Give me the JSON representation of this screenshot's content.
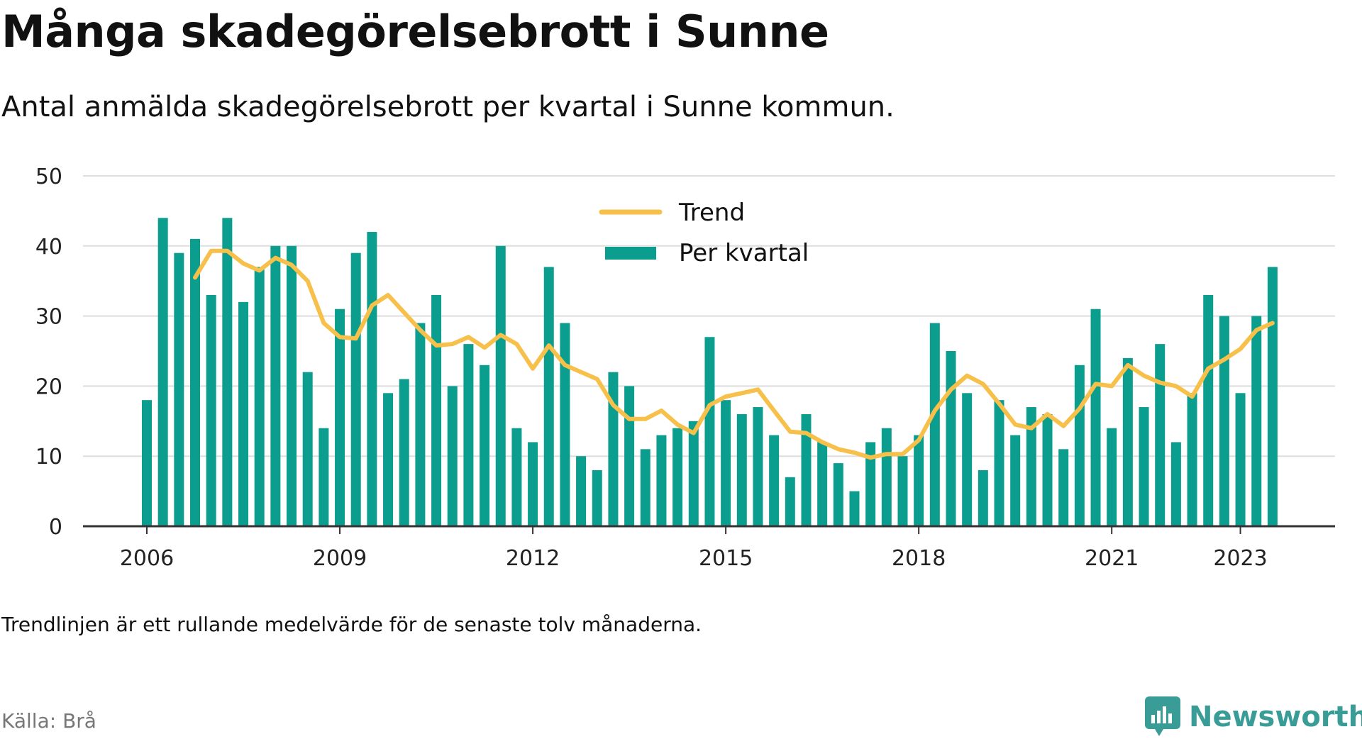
{
  "header": {
    "title": "Många skadegörelsebrott i Sunne",
    "subtitle": "Antal anmälda skadegörelsebrott per kvartal i Sunne kommun."
  },
  "footer": {
    "note": "Trendlinjen är ett rullande medelvärde för de senaste tolv månaderna.",
    "source": "Källa: Brå",
    "brand": "Newsworthy",
    "brand_icon": "newsworthy-logo-icon"
  },
  "colors": {
    "bars": "#0b9e8f",
    "trend": "#f7c04a",
    "grid": "#dddddd",
    "axis": "#333333",
    "brand": "#3a9c96"
  },
  "chart_data": {
    "type": "bar",
    "title": "Många skadegörelsebrott i Sunne",
    "subtitle": "Antal anmälda skadegörelsebrott per kvartal i Sunne kommun.",
    "x_tick_labels": [
      "2006",
      "2009",
      "2012",
      "2015",
      "2018",
      "2021",
      "2023"
    ],
    "y_ticks": [
      0,
      10,
      20,
      30,
      40,
      50
    ],
    "ylim": [
      0,
      50
    ],
    "grid": true,
    "legend_position": "top-center",
    "legend": [
      {
        "label": "Trend",
        "kind": "line"
      },
      {
        "label": "Per kvartal",
        "kind": "bar"
      }
    ],
    "categories": [
      "2006 Q1",
      "2006 Q2",
      "2006 Q3",
      "2006 Q4",
      "2007 Q1",
      "2007 Q2",
      "2007 Q3",
      "2007 Q4",
      "2008 Q1",
      "2008 Q2",
      "2008 Q3",
      "2008 Q4",
      "2009 Q1",
      "2009 Q2",
      "2009 Q3",
      "2009 Q4",
      "2010 Q1",
      "2010 Q2",
      "2010 Q3",
      "2010 Q4",
      "2011 Q1",
      "2011 Q2",
      "2011 Q3",
      "2011 Q4",
      "2012 Q1",
      "2012 Q2",
      "2012 Q3",
      "2012 Q4",
      "2013 Q1",
      "2013 Q2",
      "2013 Q3",
      "2013 Q4",
      "2014 Q1",
      "2014 Q2",
      "2014 Q3",
      "2014 Q4",
      "2015 Q1",
      "2015 Q2",
      "2015 Q3",
      "2015 Q4",
      "2016 Q1",
      "2016 Q2",
      "2016 Q3",
      "2016 Q4",
      "2017 Q1",
      "2017 Q2",
      "2017 Q3",
      "2017 Q4",
      "2018 Q1",
      "2018 Q2",
      "2018 Q3",
      "2018 Q4",
      "2019 Q1",
      "2019 Q2",
      "2019 Q3",
      "2019 Q4",
      "2020 Q1",
      "2020 Q2",
      "2020 Q3",
      "2020 Q4",
      "2021 Q1",
      "2021 Q2",
      "2021 Q3",
      "2021 Q4",
      "2022 Q1",
      "2022 Q2",
      "2022 Q3",
      "2022 Q4",
      "2023 Q1",
      "2023 Q2",
      "2023 Q3"
    ],
    "series": [
      {
        "name": "Per kvartal",
        "type": "bar",
        "values": [
          18,
          44,
          39,
          41,
          33,
          44,
          32,
          37,
          40,
          40,
          22,
          14,
          31,
          39,
          42,
          19,
          21,
          29,
          33,
          20,
          26,
          23,
          40,
          14,
          12,
          37,
          29,
          10,
          8,
          22,
          20,
          11,
          13,
          14,
          15,
          27,
          18,
          16,
          17,
          13,
          7,
          16,
          12,
          9,
          5,
          12,
          14,
          10,
          13,
          29,
          25,
          19,
          8,
          18,
          13,
          17,
          16,
          11,
          23,
          31,
          14,
          24,
          17,
          26,
          12,
          19,
          33,
          30,
          19,
          30,
          37
        ]
      },
      {
        "name": "Trend",
        "type": "line",
        "values": [
          null,
          null,
          null,
          35.5,
          39.3,
          39.3,
          37.5,
          36.5,
          38.3,
          37.3,
          35,
          29,
          27,
          26.8,
          31.5,
          33,
          30.5,
          28,
          25.8,
          26,
          27,
          25.5,
          27.3,
          26,
          22.5,
          25.8,
          23,
          22,
          21,
          17.3,
          15.3,
          15.3,
          16.5,
          14.5,
          13.3,
          17.3,
          18.5,
          19,
          19.5,
          16.5,
          13.5,
          13.3,
          12,
          11,
          10.5,
          9.8,
          10.3,
          10.3,
          12.3,
          16.5,
          19.5,
          21.5,
          20.3,
          17.5,
          14.5,
          14,
          16,
          14.3,
          16.8,
          20.3,
          20,
          23,
          21.5,
          20.5,
          20,
          18.5,
          22.5,
          23.8,
          25.3,
          28,
          29
        ]
      }
    ]
  }
}
